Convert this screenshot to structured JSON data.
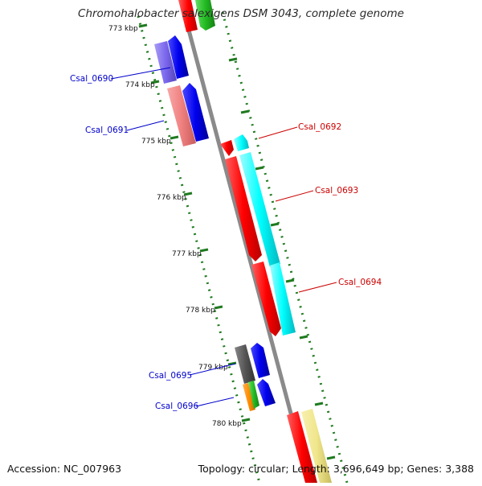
{
  "title": "Chromohalobacter salexigens DSM 3043, complete genome",
  "footer": {
    "accession": "Accession: NC_007963",
    "summary": "Topology: circular; Length: 3,696,649 bp; Genes: 3,388"
  },
  "scale_labels": [
    "773 kbp",
    "774 kbp",
    "775 kbp",
    "776 kbp",
    "777 kbp",
    "778 kbp",
    "779 kbp",
    "780 kbp"
  ],
  "gene_labels": {
    "csal_0690": "Csal_0690",
    "csal_0691": "Csal_0691",
    "csal_0692": "Csal_0692",
    "csal_0693": "Csal_0693",
    "csal_0694": "Csal_0694",
    "csal_0695": "Csal_0695",
    "csal_0696": "Csal_0696"
  },
  "colors": {
    "backbone": "#8a8a8a",
    "ticks": "#1f7a1f",
    "forward_label": "#0000cc",
    "reverse_label": "#cc0000",
    "red": "#ff0000",
    "blue": "#0000ee",
    "cyan": "#00ffff",
    "pink": "#f08080",
    "purple": "#7b68ee",
    "gray": "#555555",
    "orange": "#ff8c00",
    "green": "#22bb22",
    "yellow": "#f0e68c"
  }
}
